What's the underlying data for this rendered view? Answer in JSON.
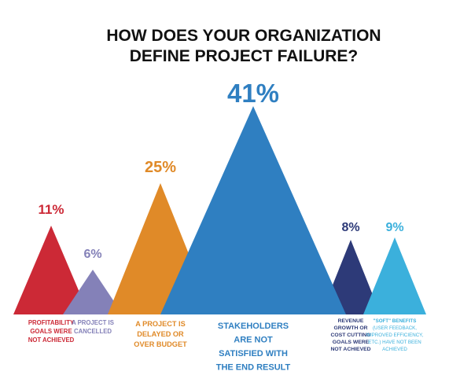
{
  "chart_data": {
    "type": "area",
    "title_lines": [
      "HOW DOES YOUR ORGANIZATION",
      "DEFINE PROJECT FAILURE?"
    ],
    "unit": "%",
    "series": [
      {
        "name": "",
        "categories": [
          {
            "label_lines": [
              "PROFITABILITY",
              "GOALS WERE",
              "NOT ACHIEVED"
            ],
            "value_label": "11%",
            "value": 11,
            "color": "#cc2936"
          },
          {
            "label_lines": [
              "A PROJECT IS",
              "CANCELLED"
            ],
            "value_label": "6%",
            "value": 6,
            "color": "#8481b8"
          },
          {
            "label_lines": [
              "A PROJECT IS",
              "DELAYED OR",
              "OVER BUDGET"
            ],
            "value_label": "25%",
            "value": 25,
            "color": "#e08a28"
          },
          {
            "label_lines": [
              "STAKEHOLDERS",
              "ARE NOT",
              "SATISFIED WITH",
              "THE END RESULT"
            ],
            "value_label": "41%",
            "value": 41,
            "color": "#2f7fc1"
          },
          {
            "label_lines": [
              "REVENUE",
              "GROWTH OR",
              "COST CUTTING",
              "GOALS WERE",
              "NOT ACHIEVED"
            ],
            "value_label": "8%",
            "value": 8,
            "color": "#2d3a78"
          },
          {
            "label_lines": [
              "\"SOFT\" BENEFITS",
              "(USER FEEDBACK,",
              "IMPROVED EFFICIENCY,",
              "ETC.) HAVE NOT BEEN",
              "ACHIEVED"
            ],
            "value_label": "9%",
            "value": 9,
            "color": "#3bb0dc"
          }
        ]
      }
    ],
    "grid": false,
    "legend": "none"
  }
}
